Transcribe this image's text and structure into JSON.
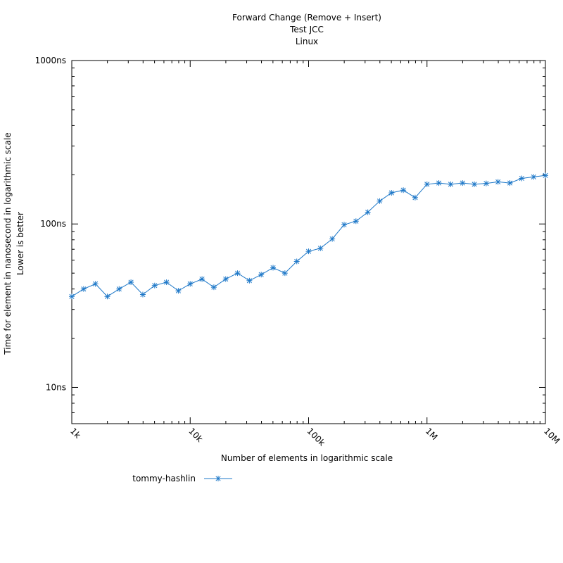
{
  "chart_data": {
    "type": "line",
    "title_lines": [
      "Forward Change (Remove + Insert)",
      "Test JCC",
      "Linux"
    ],
    "xlabel": "Number of elements in logarithmic scale",
    "ylabel_lines": [
      "Time for element in nanosecond in logarithmic scale",
      "Lower is better"
    ],
    "x_scale": "log",
    "y_scale": "log",
    "xlim": [
      1000,
      10000000
    ],
    "ylim": [
      6,
      1000
    ],
    "x_ticks": [
      {
        "value": 1000,
        "label": "1k"
      },
      {
        "value": 10000,
        "label": "10k"
      },
      {
        "value": 100000,
        "label": "100k"
      },
      {
        "value": 1000000,
        "label": "1M"
      },
      {
        "value": 10000000,
        "label": "10M"
      }
    ],
    "y_ticks": [
      {
        "value": 10,
        "label": "10ns"
      },
      {
        "value": 100,
        "label": "100ns"
      },
      {
        "value": 1000,
        "label": "1000ns"
      }
    ],
    "legend_position": "bottom-left",
    "series": [
      {
        "name": "tommy-hashlin",
        "color": "#1e78c8",
        "marker": "asterisk",
        "x": [
          1000,
          1259,
          1585,
          1995,
          2512,
          3162,
          3981,
          5012,
          6310,
          7943,
          10000,
          12589,
          15849,
          19953,
          25119,
          31623,
          39811,
          50119,
          63096,
          79433,
          100000,
          125893,
          158489,
          199526,
          251189,
          316228,
          398107,
          501187,
          630957,
          794328,
          1000000,
          1258925,
          1584893,
          1995262,
          2511886,
          3162278,
          3981072,
          5011872,
          6309573,
          7943282,
          10000000
        ],
        "y": [
          36,
          40,
          43,
          36,
          40,
          44,
          37,
          42,
          44,
          39,
          43,
          46,
          41,
          46,
          50,
          45,
          49,
          54,
          50,
          59,
          68,
          71,
          81,
          99,
          104,
          118,
          138,
          155,
          161,
          145,
          175,
          178,
          175,
          178,
          175,
          177,
          181,
          178,
          190,
          194,
          198
        ]
      }
    ]
  }
}
